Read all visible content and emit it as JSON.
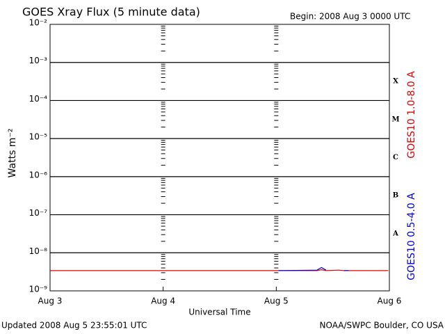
{
  "chart_data": {
    "type": "line",
    "title": "GOES Xray Flux (5 minute data)",
    "subtitle": "Begin:  2008 Aug 3 0000 UTC",
    "x_label": "Universal Time",
    "y_label": "Watts m⁻²",
    "footer_left": "Updated 2008 Aug  5 23:55:01 UTC",
    "footer_right": "NOAA/SWPC Boulder, CO USA",
    "log_y": true,
    "grid": true,
    "xlim": [
      3,
      6
    ],
    "xticks": [
      {
        "value": 3,
        "label": "Aug 3"
      },
      {
        "value": 4,
        "label": "Aug 4"
      },
      {
        "value": 5,
        "label": "Aug 5"
      },
      {
        "value": 6,
        "label": "Aug 6"
      }
    ],
    "ylim": [
      1e-09,
      0.01
    ],
    "yticks": [
      {
        "value": 1e-09,
        "label": "10⁻⁹"
      },
      {
        "value": 1e-08,
        "label": "10⁻⁸"
      },
      {
        "value": 1e-07,
        "label": "10⁻⁷"
      },
      {
        "value": 1e-06,
        "label": "10⁻⁶"
      },
      {
        "value": 1e-05,
        "label": "10⁻⁵"
      },
      {
        "value": 0.0001,
        "label": "10⁻⁴"
      },
      {
        "value": 0.001,
        "label": "10⁻³"
      },
      {
        "value": 0.01,
        "label": "10⁻²"
      }
    ],
    "flare_classes": [
      {
        "label": "A",
        "value": 1e-08
      },
      {
        "label": "B",
        "value": 1e-07
      },
      {
        "label": "C",
        "value": 1e-06
      },
      {
        "label": "M",
        "value": 1e-05
      },
      {
        "label": "X",
        "value": 0.0001
      }
    ],
    "x": [
      3,
      3.5,
      4,
      4.5,
      5,
      5.02,
      5.06,
      5.36,
      5.4,
      5.44,
      5.55,
      5.6,
      5.64,
      5.99
    ],
    "series": [
      {
        "name": "GOES10 1.0-8.0 A",
        "color": "#e00000",
        "values": [
          3.4e-09,
          3.4e-09,
          3.4e-09,
          3.4e-09,
          3.4e-09,
          3.4e-09,
          3.4e-09,
          3.4e-09,
          3.6e-09,
          3.4e-09,
          3.5e-09,
          3.4e-09,
          3.4e-09,
          3.4e-09
        ]
      },
      {
        "name": "GOES10 0.5-4.0 A",
        "color": "#0000e0",
        "values": [
          null,
          null,
          null,
          null,
          null,
          3.4e-09,
          3.4e-09,
          3.5e-09,
          4.1e-09,
          3.5e-09,
          null,
          3.4e-09,
          3.4e-09,
          null
        ]
      }
    ]
  }
}
